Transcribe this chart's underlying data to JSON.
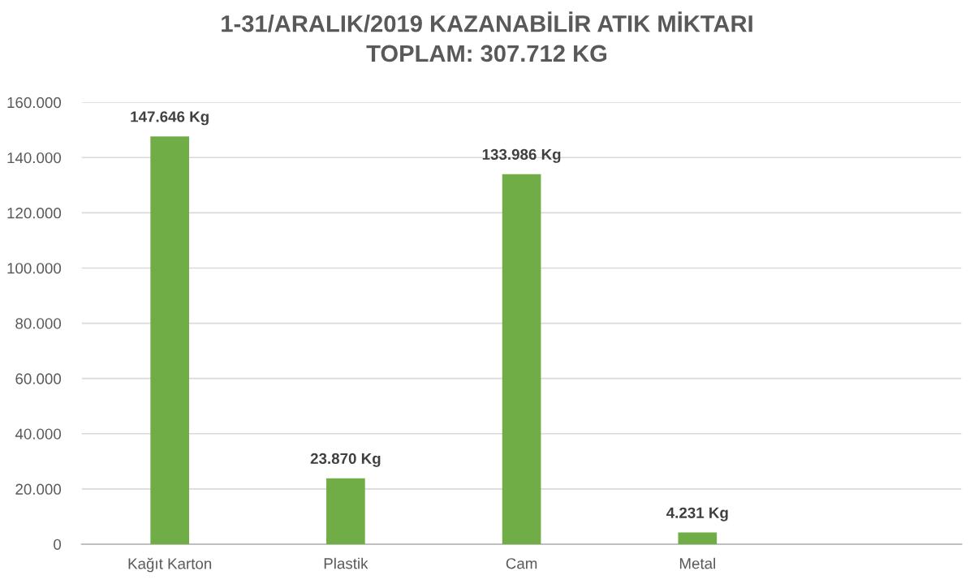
{
  "chart_data": {
    "type": "bar",
    "title": "1-31/ARALIK/2019 KAZANABİLİR ATIK MİKTARI\nTOPLAM: 307.712 KG",
    "categories": [
      "Kağıt Karton",
      "Plastik",
      "Cam",
      "Metal",
      null
    ],
    "values": [
      147646,
      23870,
      133986,
      4231,
      null
    ],
    "value_labels": [
      "147.646 Kg",
      "23.870 Kg",
      "133.986 Kg",
      "4.231 Kg",
      null
    ],
    "color": "#70ad47",
    "ylim": [
      0,
      160000
    ],
    "yticks": [
      0,
      {
        "value": 20000,
        "label": "20.000"
      },
      {
        "value": 40000,
        "label": "40.000"
      },
      {
        "value": 60000,
        "label": "60.000"
      },
      {
        "value": 80000,
        "label": "80.000"
      },
      {
        "value": 100000,
        "label": "100.000"
      },
      {
        "value": 120000,
        "label": "120.000"
      },
      {
        "value": 140000,
        "label": "140.000"
      },
      {
        "value": 160000,
        "label": "160.000"
      }
    ],
    "grid": "y",
    "legend": false
  }
}
